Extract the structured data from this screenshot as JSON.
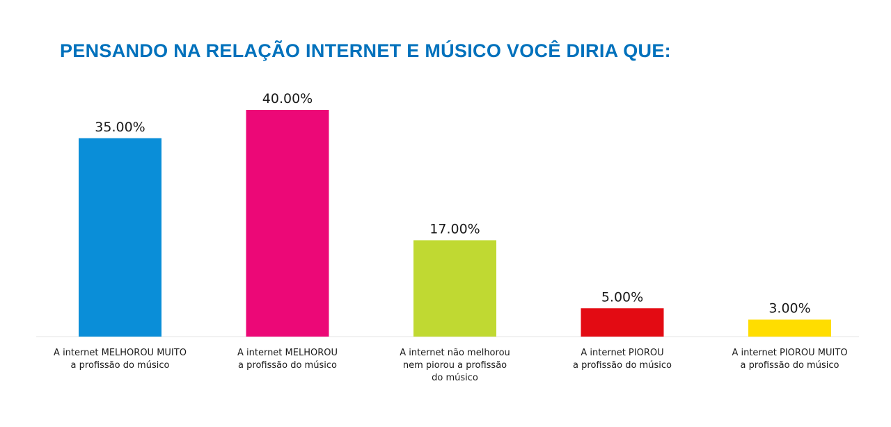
{
  "chart_data": {
    "type": "bar",
    "title": "PENSANDO NA RELAÇÃO INTERNET E MÚSICO VOCÊ DIRIA QUE:",
    "categories": [
      [
        "A internet MELHOROU MUITO",
        "a profissão do músico"
      ],
      [
        "A internet MELHOROU",
        "a profissão do músico"
      ],
      [
        "A internet não melhorou",
        "nem piorou a profissão",
        "do músico"
      ],
      [
        "A internet PIOROU",
        "a profissão do músico"
      ],
      [
        "A internet PIOROU MUITO",
        "a profissão do músico"
      ]
    ],
    "values": [
      35,
      40,
      17,
      5,
      3
    ],
    "value_labels": [
      "35.00%",
      "40.00%",
      "17.00%",
      "5.00%",
      "3.00%"
    ],
    "colors": [
      "#0a8ed8",
      "#ec0877",
      "#c0d932",
      "#e30b13",
      "#ffdd00"
    ],
    "ylim": [
      0,
      40
    ],
    "grid": false,
    "legend": "none",
    "xlabel": "",
    "ylabel": ""
  }
}
